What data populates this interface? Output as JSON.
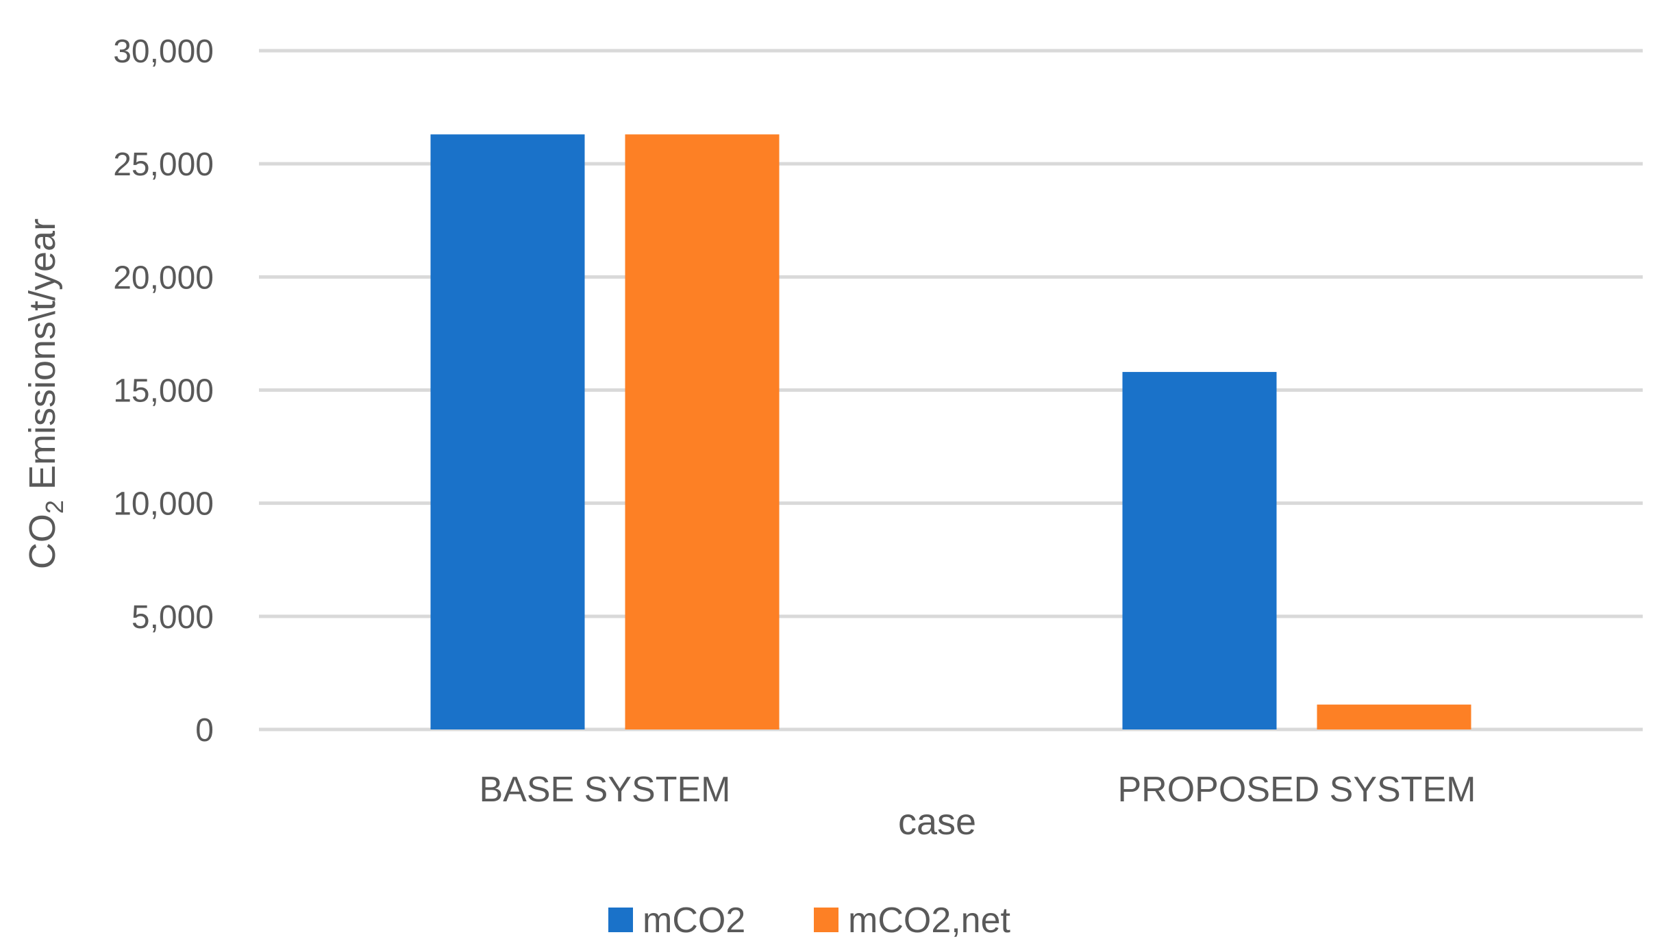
{
  "chart_data": {
    "type": "bar",
    "categories": [
      "BASE SYSTEM",
      "PROPOSED SYSTEM"
    ],
    "series": [
      {
        "name": "mCO2",
        "values": [
          26300,
          15800
        ],
        "color": "#1a72c9"
      },
      {
        "name": "mCO2,net",
        "values": [
          26300,
          1100
        ],
        "color": "#fd8025"
      }
    ],
    "xlabel": "case",
    "ylabel": {
      "prefix": "CO",
      "subscript": "2",
      "suffix": " Emissions\\t/year"
    },
    "ylim": [
      0,
      30000
    ],
    "yticks": [
      0,
      5000,
      10000,
      15000,
      20000,
      25000,
      30000
    ],
    "ytick_labels": [
      "0",
      "5,000",
      "10,000",
      "15,000",
      "20,000",
      "25,000",
      "30,000"
    ],
    "grid": true,
    "legend_position": "bottom"
  }
}
